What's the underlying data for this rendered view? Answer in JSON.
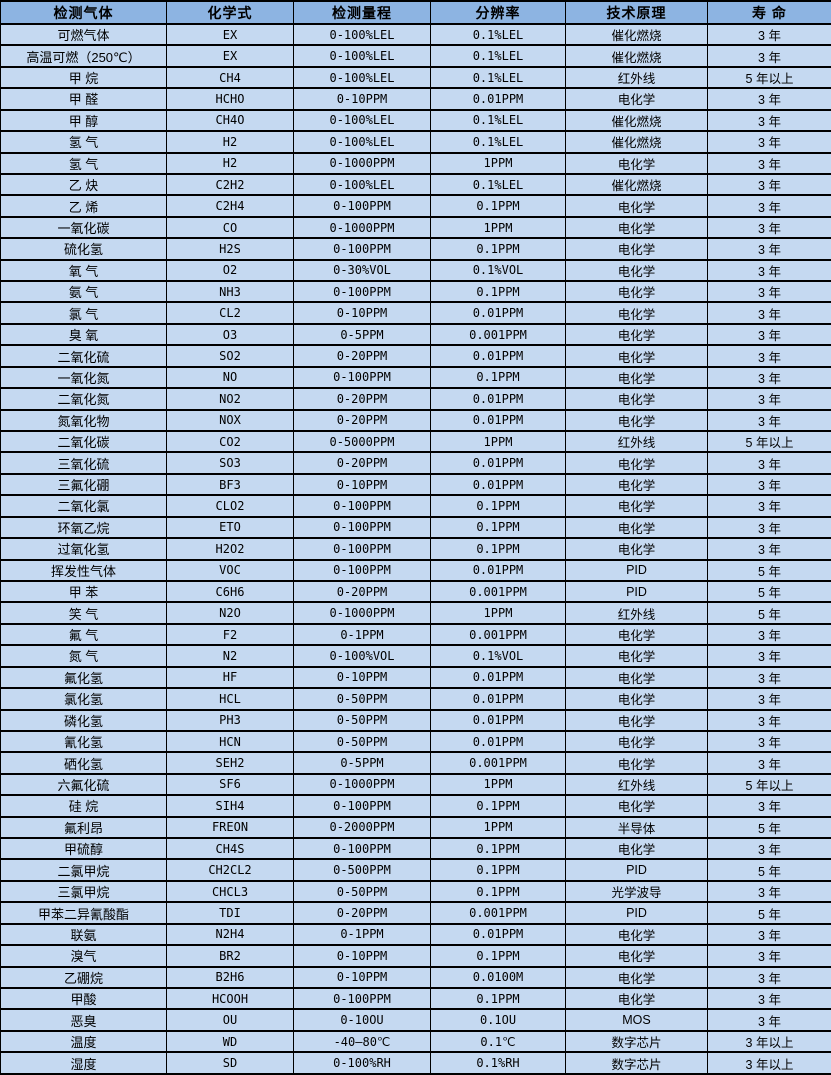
{
  "colors": {
    "header_bg": "#8db4e2",
    "row_bg": "#c5d9f1",
    "border": "#000000",
    "text": "#000000"
  },
  "table": {
    "columns": [
      "检测气体",
      "化学式",
      "检测量程",
      "分辨率",
      "技术原理",
      "寿 命"
    ],
    "column_keys": [
      "gas-name",
      "formula",
      "range",
      "resolution",
      "principle",
      "lifespan"
    ],
    "rows": [
      [
        "可燃气体",
        "EX",
        "0-100%LEL",
        "0.1%LEL",
        "催化燃烧",
        "3 年"
      ],
      [
        "高温可燃（250℃）",
        "EX",
        "0-100%LEL",
        "0.1%LEL",
        "催化燃烧",
        "3 年"
      ],
      [
        "甲 烷",
        "CH4",
        "0-100%LEL",
        "0.1%LEL",
        "红外线",
        "5 年以上"
      ],
      [
        "甲 醛",
        "HCHO",
        "0-10PPM",
        "0.01PPM",
        "电化学",
        "3 年"
      ],
      [
        "甲 醇",
        "CH4O",
        "0-100%LEL",
        "0.1%LEL",
        "催化燃烧",
        "3 年"
      ],
      [
        "氢 气",
        "H2",
        "0-100%LEL",
        "0.1%LEL",
        "催化燃烧",
        "3 年"
      ],
      [
        "氢 气",
        "H2",
        "0-1000PPM",
        "1PPM",
        "电化学",
        "3 年"
      ],
      [
        "乙 炔",
        "C2H2",
        "0-100%LEL",
        "0.1%LEL",
        "催化燃烧",
        "3 年"
      ],
      [
        "乙 烯",
        "C2H4",
        "0-100PPM",
        "0.1PPM",
        "电化学",
        "3 年"
      ],
      [
        "一氧化碳",
        "CO",
        "0-1000PPM",
        "1PPM",
        "电化学",
        "3 年"
      ],
      [
        "硫化氢",
        "H2S",
        "0-100PPM",
        "0.1PPM",
        "电化学",
        "3 年"
      ],
      [
        "氧 气",
        "O2",
        "0-30%VOL",
        "0.1%VOL",
        "电化学",
        "3 年"
      ],
      [
        "氨 气",
        "NH3",
        "0-100PPM",
        "0.1PPM",
        "电化学",
        "3 年"
      ],
      [
        "氯 气",
        "CL2",
        "0-10PPM",
        "0.01PPM",
        "电化学",
        "3 年"
      ],
      [
        "臭 氧",
        "O3",
        "0-5PPM",
        "0.001PPM",
        "电化学",
        "3 年"
      ],
      [
        "二氧化硫",
        "SO2",
        "0-20PPM",
        "0.01PPM",
        "电化学",
        "3 年"
      ],
      [
        "一氧化氮",
        "NO",
        "0-100PPM",
        "0.1PPM",
        "电化学",
        "3 年"
      ],
      [
        "二氧化氮",
        "NO2",
        "0-20PPM",
        "0.01PPM",
        "电化学",
        "3 年"
      ],
      [
        "氮氧化物",
        "NOX",
        "0-20PPM",
        "0.01PPM",
        "电化学",
        "3 年"
      ],
      [
        "二氧化碳",
        "CO2",
        "0-5000PPM",
        "1PPM",
        "红外线",
        "5 年以上"
      ],
      [
        "三氧化硫",
        "SO3",
        "0-20PPM",
        "0.01PPM",
        "电化学",
        "3 年"
      ],
      [
        "三氟化硼",
        "BF3",
        "0-10PPM",
        "0.01PPM",
        "电化学",
        "3 年"
      ],
      [
        "二氧化氯",
        "CLO2",
        "0-100PPM",
        "0.1PPM",
        "电化学",
        "3 年"
      ],
      [
        "环氧乙烷",
        "ETO",
        "0-100PPM",
        "0.1PPM",
        "电化学",
        "3 年"
      ],
      [
        "过氧化氢",
        "H2O2",
        "0-100PPM",
        "0.1PPM",
        "电化学",
        "3 年"
      ],
      [
        "挥发性气体",
        "VOC",
        "0-100PPM",
        "0.01PPM",
        "PID",
        "5 年"
      ],
      [
        "甲 苯",
        "C6H6",
        "0-20PPM",
        "0.001PPM",
        "PID",
        "5 年"
      ],
      [
        "笑 气",
        "N2O",
        "0-1000PPM",
        "1PPM",
        "红外线",
        "5 年"
      ],
      [
        "氟 气",
        "F2",
        "0-1PPM",
        "0.001PPM",
        "电化学",
        "3 年"
      ],
      [
        "氮 气",
        "N2",
        "0-100%VOL",
        "0.1%VOL",
        "电化学",
        "3 年"
      ],
      [
        "氟化氢",
        "HF",
        "0-10PPM",
        "0.01PPM",
        "电化学",
        "3 年"
      ],
      [
        "氯化氢",
        "HCL",
        "0-50PPM",
        "0.01PPM",
        "电化学",
        "3 年"
      ],
      [
        "磷化氢",
        "PH3",
        "0-50PPM",
        "0.01PPM",
        "电化学",
        "3 年"
      ],
      [
        "氰化氢",
        "HCN",
        "0-50PPM",
        "0.01PPM",
        "电化学",
        "3 年"
      ],
      [
        "硒化氢",
        "SEH2",
        "0-5PPM",
        "0.001PPM",
        "电化学",
        "3 年"
      ],
      [
        "六氟化硫",
        "SF6",
        "0-1000PPM",
        "1PPM",
        "红外线",
        "5 年以上"
      ],
      [
        "硅 烷",
        "SIH4",
        "0-100PPM",
        "0.1PPM",
        "电化学",
        "3 年"
      ],
      [
        "氟利昂",
        "FREON",
        "0-2000PPM",
        "1PPM",
        "半导体",
        "5 年"
      ],
      [
        "甲硫醇",
        "CH4S",
        "0-100PPM",
        "0.1PPM",
        "电化学",
        "3 年"
      ],
      [
        "二氯甲烷",
        "CH2CL2",
        "0-500PPM",
        "0.1PPM",
        "PID",
        "5 年"
      ],
      [
        "三氯甲烷",
        "CHCL3",
        "0-50PPM",
        "0.1PPM",
        "光学波导",
        "3 年"
      ],
      [
        "甲苯二异氰酸酯",
        "TDI",
        "0-20PPM",
        "0.001PPM",
        "PID",
        "5 年"
      ],
      [
        "联氨",
        "N2H4",
        "0-1PPM",
        "0.01PPM",
        "电化学",
        "3 年"
      ],
      [
        "溴气",
        "BR2",
        "0-10PPM",
        "0.1PPM",
        "电化学",
        "3 年"
      ],
      [
        "乙硼烷",
        "B2H6",
        "0-10PPM",
        "0.0100M",
        "电化学",
        "3 年"
      ],
      [
        "甲酸",
        "HCOOH",
        "0-100PPM",
        "0.1PPM",
        "电化学",
        "3 年"
      ],
      [
        "恶臭",
        "OU",
        "0-10OU",
        "0.1OU",
        "MOS",
        "3 年"
      ],
      [
        "温度",
        "WD",
        "-40—80℃",
        "0.1℃",
        "数字芯片",
        "3 年以上"
      ],
      [
        "湿度",
        "SD",
        "0-100%RH",
        "0.1%RH",
        "数字芯片",
        "3 年以上"
      ]
    ]
  }
}
